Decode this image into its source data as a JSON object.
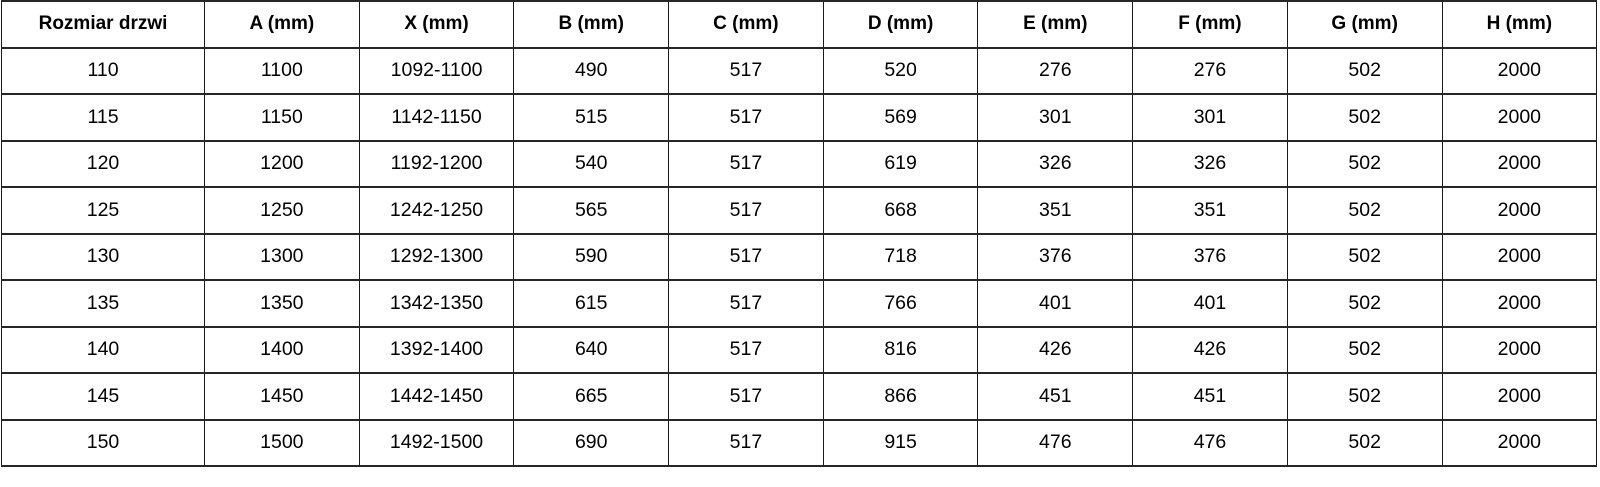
{
  "table": {
    "columns": [
      "Rozmiar drzwi",
      "A (mm)",
      "X (mm)",
      "B (mm)",
      "C (mm)",
      "D (mm)",
      "E (mm)",
      "F (mm)",
      "G (mm)",
      "H (mm)"
    ],
    "rows": [
      [
        "110",
        "1100",
        "1092-1100",
        "490",
        "517",
        "520",
        "276",
        "276",
        "502",
        "2000"
      ],
      [
        "115",
        "1150",
        "1142-1150",
        "515",
        "517",
        "569",
        "301",
        "301",
        "502",
        "2000"
      ],
      [
        "120",
        "1200",
        "1192-1200",
        "540",
        "517",
        "619",
        "326",
        "326",
        "502",
        "2000"
      ],
      [
        "125",
        "1250",
        "1242-1250",
        "565",
        "517",
        "668",
        "351",
        "351",
        "502",
        "2000"
      ],
      [
        "130",
        "1300",
        "1292-1300",
        "590",
        "517",
        "718",
        "376",
        "376",
        "502",
        "2000"
      ],
      [
        "135",
        "1350",
        "1342-1350",
        "615",
        "517",
        "766",
        "401",
        "401",
        "502",
        "2000"
      ],
      [
        "140",
        "1400",
        "1392-1400",
        "640",
        "517",
        "816",
        "426",
        "426",
        "502",
        "2000"
      ],
      [
        "145",
        "1450",
        "1442-1450",
        "665",
        "517",
        "866",
        "451",
        "451",
        "502",
        "2000"
      ],
      [
        "150",
        "1500",
        "1492-1500",
        "690",
        "517",
        "915",
        "476",
        "476",
        "502",
        "2000"
      ]
    ],
    "colors": {
      "border_horizontal": "#262626",
      "border_vertical": "#1a1a1a",
      "text": "#000000",
      "background": "#ffffff"
    }
  }
}
